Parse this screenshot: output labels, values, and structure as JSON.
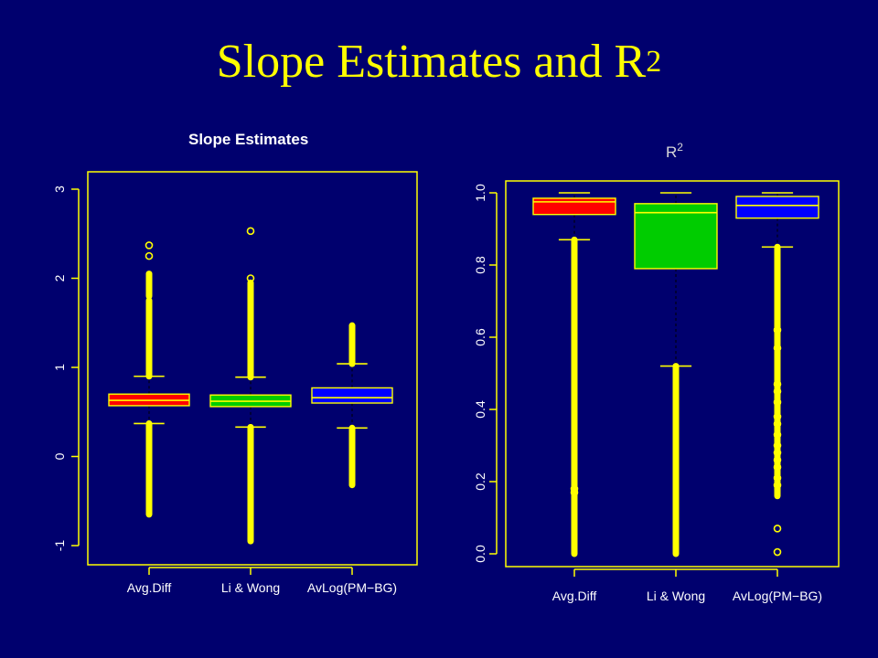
{
  "slide": {
    "title": "Slope Estimates and R",
    "title_sup": "2"
  },
  "colors": {
    "background": "#00006e",
    "title": "#ffff00",
    "axis": "#ffff00",
    "outlier": "#ffff00",
    "series": [
      "#ff0000",
      "#00cc00",
      "#0000ff"
    ]
  },
  "chart_data": [
    {
      "type": "box",
      "title": "Slope Estimates",
      "categories": [
        "Avg.Diff",
        "Li & Wong",
        "AvLog(PM−BG)"
      ],
      "ylim": [
        -1.1,
        3.0
      ],
      "yticks": [
        -1,
        0,
        1,
        2,
        3
      ],
      "series": [
        {
          "category": "Avg.Diff",
          "color": "#ff0000",
          "q1": 0.57,
          "median": 0.63,
          "q3": 0.7,
          "whisker_low": 0.37,
          "whisker_high": 0.9,
          "outliers": [
            [
              -0.65,
              0.37
            ],
            [
              0.9,
              1.75
            ],
            [
              1.8,
              2.05
            ],
            2.25,
            2.37
          ]
        },
        {
          "category": "Li & Wong",
          "color": "#00cc00",
          "q1": 0.56,
          "median": 0.62,
          "q3": 0.69,
          "whisker_low": 0.33,
          "whisker_high": 0.89,
          "outliers": [
            [
              -0.95,
              0.33
            ],
            [
              0.89,
              1.95
            ],
            2.0,
            2.53
          ]
        },
        {
          "category": "AvLog(PM−BG)",
          "color": "#0000ff",
          "q1": 0.6,
          "median": 0.66,
          "q3": 0.77,
          "whisker_low": 0.32,
          "whisker_high": 1.04,
          "outliers": [
            [
              -0.32,
              0.32
            ],
            [
              1.04,
              1.47
            ]
          ]
        }
      ]
    },
    {
      "type": "box",
      "title": "R",
      "title_sup": "2",
      "categories": [
        "Avg.Diff",
        "Li & Wong",
        "AvLog(PM−BG)"
      ],
      "ylim": [
        -0.02,
        1.02
      ],
      "yticks": [
        0.0,
        0.2,
        0.4,
        0.6,
        0.8,
        1.0
      ],
      "ytick_labels": [
        "0.0",
        "0.2",
        "0.4",
        "0.6",
        "0.8",
        "1.0"
      ],
      "series": [
        {
          "category": "Avg.Diff",
          "color": "#ff0000",
          "q1": 0.94,
          "median": 0.975,
          "q3": 0.985,
          "whisker_low": 0.87,
          "whisker_high": 1.0,
          "outliers": [
            [
              0.0,
              0.87
            ],
            0.17,
            0.18
          ]
        },
        {
          "category": "Li & Wong",
          "color": "#00cc00",
          "q1": 0.79,
          "median": 0.945,
          "q3": 0.97,
          "whisker_low": 0.52,
          "whisker_high": 1.0,
          "outliers": [
            [
              0.0,
              0.52
            ]
          ]
        },
        {
          "category": "AvLog(PM−BG)",
          "color": "#0000ff",
          "q1": 0.93,
          "median": 0.965,
          "q3": 0.99,
          "whisker_low": 0.85,
          "whisker_high": 1.0,
          "outliers": [
            [
              0.16,
              0.85
            ],
            0.62,
            0.57,
            0.47,
            0.45,
            0.42,
            0.38,
            0.36,
            0.33,
            0.3,
            0.28,
            0.26,
            0.24,
            0.21,
            0.19,
            0.07,
            0.005
          ]
        }
      ]
    }
  ]
}
